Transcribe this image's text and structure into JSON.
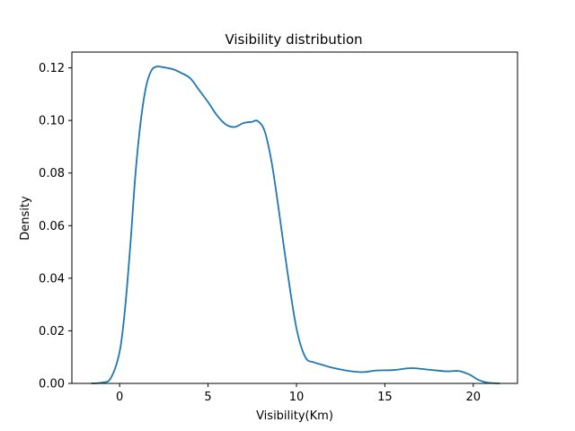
{
  "chart_data": {
    "type": "line",
    "title": "Visibility distribution",
    "xlabel": "Visibility(Km)",
    "ylabel": "Density",
    "xlim": [
      -2.7,
      22.5
    ],
    "ylim": [
      0.0,
      0.126
    ],
    "xticks": [
      0,
      5,
      10,
      15,
      20
    ],
    "xtick_labels": [
      "0",
      "5",
      "10",
      "15",
      "20"
    ],
    "yticks": [
      0.0,
      0.02,
      0.04,
      0.06,
      0.08,
      0.1,
      0.12
    ],
    "ytick_labels": [
      "0.00",
      "0.02",
      "0.04",
      "0.06",
      "0.08",
      "0.10",
      "0.12"
    ],
    "grid": false,
    "series": [
      {
        "name": "density",
        "color": "#1f77b4",
        "x": [
          -1.6,
          -1.0,
          -0.5,
          0.0,
          0.3,
          0.6,
          0.9,
          1.2,
          1.5,
          1.8,
          2.1,
          2.4,
          3.0,
          3.5,
          4.0,
          4.5,
          5.0,
          5.5,
          6.0,
          6.5,
          7.0,
          7.5,
          7.8,
          8.2,
          8.6,
          9.0,
          9.5,
          10.0,
          10.5,
          11.0,
          11.5,
          12.0,
          13.0,
          13.8,
          14.5,
          15.5,
          16.5,
          17.5,
          18.5,
          19.2,
          19.8,
          20.3,
          20.8,
          21.5
        ],
        "y": [
          0.0,
          0.0003,
          0.002,
          0.012,
          0.028,
          0.052,
          0.08,
          0.1,
          0.113,
          0.119,
          0.1205,
          0.1203,
          0.1195,
          0.118,
          0.116,
          0.1115,
          0.107,
          0.102,
          0.0985,
          0.0975,
          0.099,
          0.0995,
          0.0998,
          0.096,
          0.084,
          0.066,
          0.042,
          0.021,
          0.01,
          0.008,
          0.007,
          0.006,
          0.0047,
          0.0043,
          0.0049,
          0.0051,
          0.0058,
          0.0052,
          0.0046,
          0.0047,
          0.0033,
          0.0013,
          0.0003,
          0.0
        ]
      }
    ]
  }
}
